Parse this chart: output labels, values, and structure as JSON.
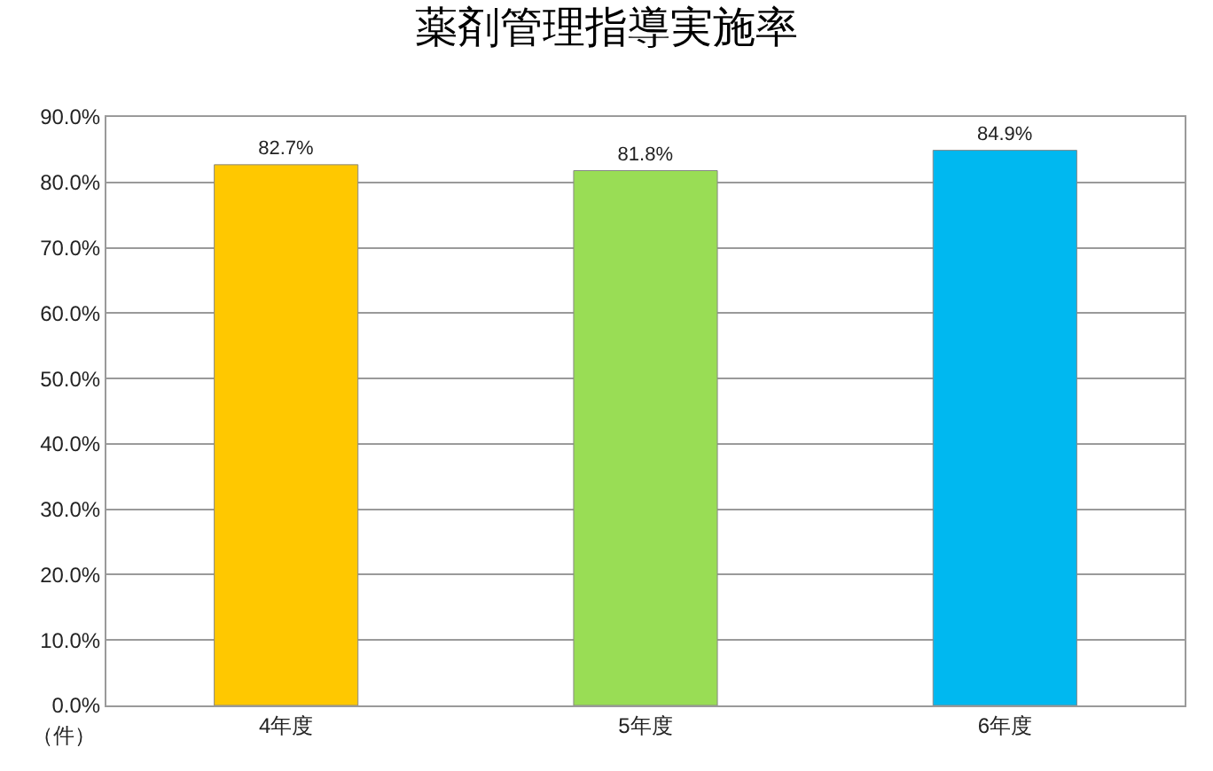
{
  "chart_data": {
    "type": "bar",
    "title": "薬剤管理指導実施率",
    "ylabel": "（件）",
    "categories": [
      "4年度",
      "5年度",
      "6年度"
    ],
    "values": [
      82.7,
      81.8,
      84.9
    ],
    "colors": [
      "#ffc800",
      "#99dd55",
      "#00b8f0"
    ],
    "value_labels": [
      "82.7%",
      "81.8%",
      "84.9%"
    ],
    "ylim": [
      0,
      90
    ],
    "yticks": [
      {
        "value": 0,
        "label": "0.0%"
      },
      {
        "value": 10,
        "label": "10.0%"
      },
      {
        "value": 20,
        "label": "20.0%"
      },
      {
        "value": 30,
        "label": "30.0%"
      },
      {
        "value": 40,
        "label": "40.0%"
      },
      {
        "value": 50,
        "label": "50.0%"
      },
      {
        "value": 60,
        "label": "60.0%"
      },
      {
        "value": 70,
        "label": "70.0%"
      },
      {
        "value": 80,
        "label": "80.0%"
      },
      {
        "value": 90,
        "label": "90.0%"
      }
    ],
    "grid": "y",
    "legend": false
  }
}
